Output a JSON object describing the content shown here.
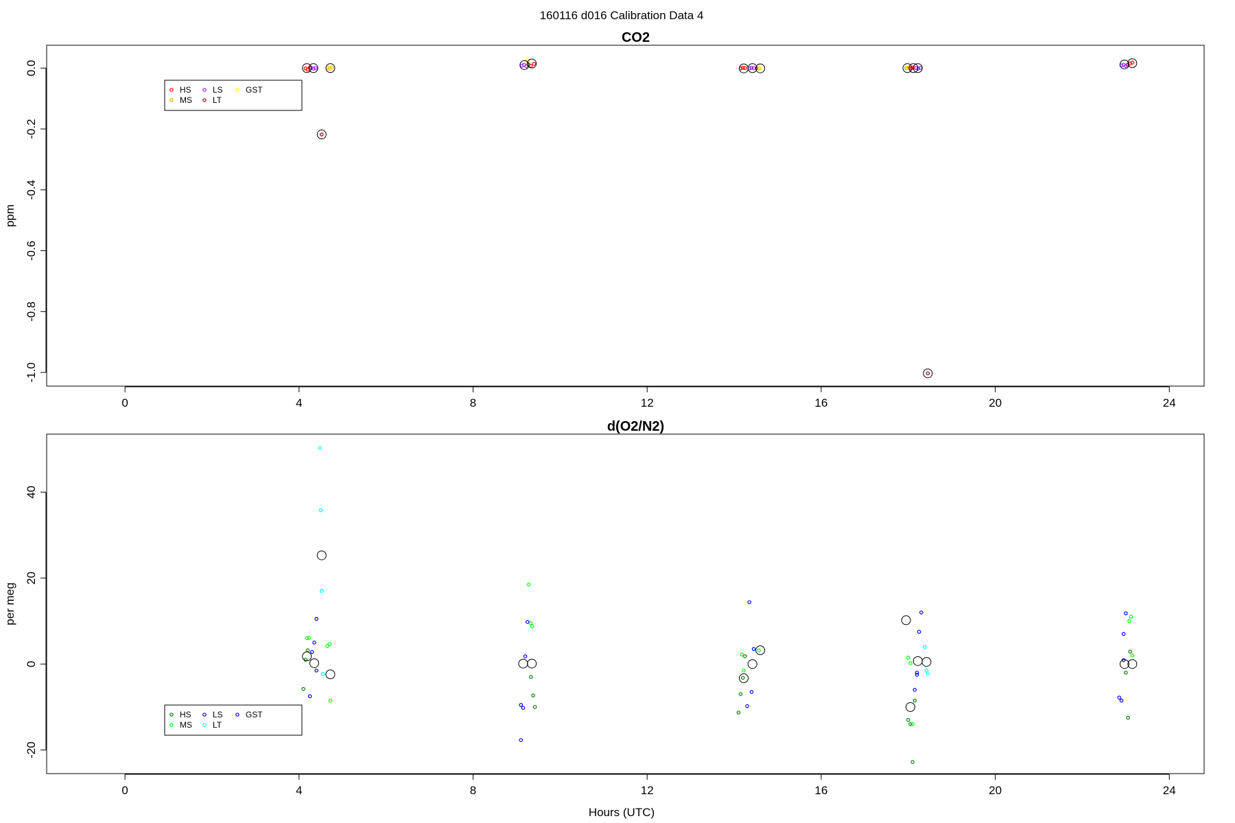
{
  "title": "160116   d016   Calibration Data 4",
  "xlabel": "Hours (UTC)",
  "chart_data": [
    {
      "type": "scatter",
      "title": "CO2",
      "ylabel": "ppm",
      "xlim": [
        -1.8,
        24.8
      ],
      "ylim": [
        -1.045,
        0.075
      ],
      "xticks": [
        "0",
        "4",
        "8",
        "12",
        "16",
        "20",
        "24"
      ],
      "yticks": [
        "-1.0",
        "-0.8",
        "-0.6",
        "-0.4",
        "-0.2",
        "0.0"
      ],
      "legend": {
        "position": "top-left",
        "entries": [
          "HS",
          "MS",
          "LS",
          "LT",
          "GST"
        ]
      },
      "series": [
        {
          "name": "HS",
          "color": "#ff0000",
          "x": [
            4.15,
            4.2,
            4.25,
            9.27,
            9.33,
            9.4,
            14.15,
            14.2,
            14.25,
            18.02,
            18.07,
            18.12,
            23.04,
            23.1,
            23.15
          ],
          "y": [
            -0.001,
            -0.005,
            0.001,
            0.012,
            0.007,
            0.014,
            -0.001,
            0.001,
            0.0,
            0.001,
            -0.001,
            0.002,
            0.011,
            0.015,
            0.018
          ]
        },
        {
          "name": "MS",
          "color": "#ffa500",
          "x": [
            4.65,
            4.7,
            4.75,
            14.52,
            14.57,
            17.95,
            18.0
          ],
          "y": [
            0.001,
            -0.002,
            0.002,
            0.0,
            -0.002,
            0.0,
            0.001
          ]
        },
        {
          "name": "LS",
          "color": "#a020f0",
          "x": [
            4.28,
            4.33,
            4.38,
            9.12,
            9.17,
            9.22,
            14.35,
            14.4,
            14.45,
            18.18,
            18.23,
            18.28,
            22.9,
            22.95,
            23.0
          ],
          "y": [
            0.001,
            -0.002,
            0.0,
            0.008,
            0.011,
            0.006,
            -0.001,
            0.001,
            0.0,
            0.0,
            -0.002,
            0.001,
            0.009,
            0.011,
            0.007
          ]
        },
        {
          "name": "LT",
          "color": "#8b0000",
          "x": [
            4.52,
            18.45
          ],
          "y": [
            -0.218,
            -1.003
          ]
        },
        {
          "name": "GST",
          "color": "#ffff00",
          "x": [
            4.72,
            14.6,
            17.98,
            9.25
          ],
          "y": [
            0.0,
            -0.001,
            0.002,
            0.025
          ]
        },
        {
          "name": "",
          "color": "#000000",
          "marker": "large-circle",
          "x": [
            4.18,
            4.33,
            4.52,
            4.72,
            9.18,
            9.35,
            14.22,
            14.42,
            14.6,
            17.98,
            18.12,
            18.22,
            18.45,
            22.97,
            23.15
          ],
          "y": [
            0.0,
            0.0,
            -0.218,
            0.0,
            0.01,
            0.015,
            -0.001,
            0.0,
            -0.001,
            0.0,
            0.0,
            0.0,
            -1.003,
            0.012,
            0.016
          ]
        }
      ]
    },
    {
      "type": "scatter",
      "title": "d(O2/N2)",
      "ylabel": "per meg",
      "xlim": [
        -1.8,
        24.8
      ],
      "ylim": [
        -25.5,
        53.5
      ],
      "xticks": [
        "0",
        "4",
        "8",
        "12",
        "16",
        "20",
        "24"
      ],
      "yticks": [
        "-20",
        "0",
        "20",
        "40"
      ],
      "legend": {
        "position": "bottom-left",
        "entries": [
          "HS",
          "MS",
          "LS",
          "LT",
          "GST"
        ]
      },
      "series": [
        {
          "name": "HS",
          "color": "#008000",
          "x": [
            4.1,
            4.15,
            4.2,
            9.33,
            9.38,
            9.42,
            14.1,
            14.15,
            14.2,
            14.25,
            18.0,
            18.05,
            18.1,
            18.15,
            23.0,
            23.05,
            23.1
          ],
          "y": [
            -5.8,
            1.0,
            3.2,
            -3.0,
            -7.3,
            -10.0,
            -11.3,
            -7.0,
            -3.2,
            1.8,
            -13.0,
            -14.0,
            -22.8,
            -8.5,
            -2.0,
            -12.5,
            2.9
          ]
        },
        {
          "name": "MS",
          "color": "#00ff00",
          "x": [
            4.18,
            4.23,
            4.65,
            4.7,
            4.72,
            9.28,
            9.32,
            9.36,
            14.18,
            14.22,
            14.57,
            18.0,
            18.05,
            18.1,
            23.08,
            23.12,
            23.15
          ],
          "y": [
            6.0,
            6.1,
            4.2,
            4.6,
            -8.5,
            18.5,
            9.5,
            8.8,
            2.2,
            -1.5,
            3.2,
            1.5,
            0.2,
            -14.0,
            10.0,
            11.0,
            2.0
          ]
        },
        {
          "name": "LS",
          "color": "#0000ff",
          "x": [
            4.25,
            4.3,
            4.35,
            4.4,
            9.1,
            9.15,
            9.2,
            9.25,
            14.35,
            14.4,
            14.45,
            18.15,
            18.2,
            18.25,
            18.3,
            22.85,
            22.9,
            22.95,
            23.0
          ],
          "y": [
            -7.5,
            2.8,
            5.0,
            10.5,
            -17.7,
            -10.2,
            1.8,
            9.8,
            14.4,
            -6.5,
            3.5,
            -6.0,
            -2.5,
            7.5,
            12.0,
            -7.8,
            -8.5,
            7.0,
            11.8
          ]
        },
        {
          "name": "LT",
          "color": "#00ffff",
          "x": [
            4.48,
            4.5,
            4.52,
            4.55,
            18.38,
            18.42,
            18.45
          ],
          "y": [
            50.3,
            35.8,
            17.0,
            -2.3,
            4.0,
            -1.5,
            -2.2
          ]
        },
        {
          "name": "GST",
          "color": "#0000cd",
          "x": [
            4.4,
            9.1,
            14.3,
            18.2,
            22.95
          ],
          "y": [
            -1.5,
            -9.5,
            -9.8,
            -2.0,
            0.9
          ]
        },
        {
          "name": "",
          "color": "#000000",
          "marker": "large-circle",
          "x": [
            4.18,
            4.35,
            4.52,
            4.72,
            9.15,
            9.35,
            14.22,
            14.42,
            14.6,
            17.95,
            18.05,
            18.22,
            18.42,
            22.97,
            23.15
          ],
          "y": [
            1.8,
            0.2,
            25.3,
            -2.4,
            0.1,
            0.1,
            -3.3,
            0.0,
            3.2,
            10.2,
            -10.0,
            0.7,
            0.5,
            0.0,
            0.0
          ]
        }
      ]
    }
  ]
}
